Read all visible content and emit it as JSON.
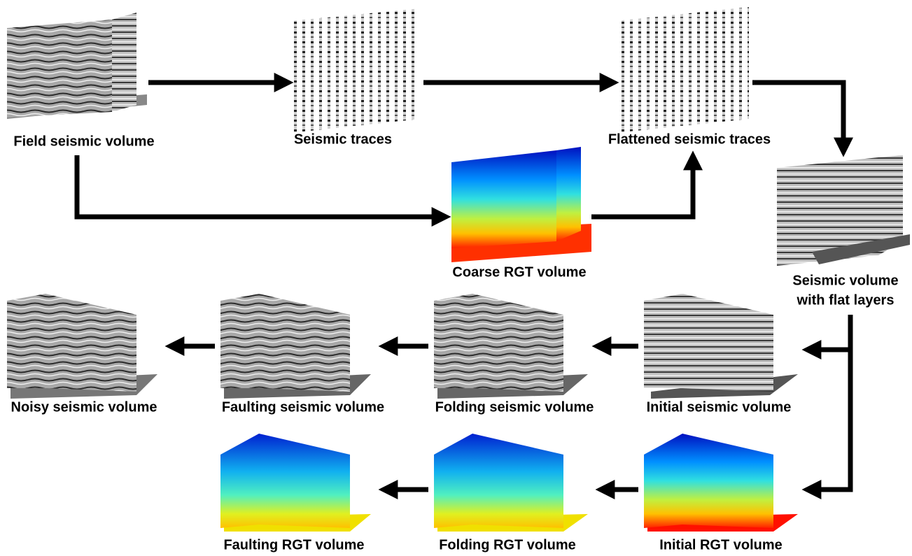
{
  "nodes": [
    {
      "label": "Field seismic volume"
    },
    {
      "label": "Seismic traces"
    },
    {
      "label": "Flattened seismic traces"
    },
    {
      "label": "Coarse RGT volume"
    },
    {
      "label": [
        "Seismic volume",
        "with flat layers"
      ]
    },
    {
      "label": "Initial seismic volume"
    },
    {
      "label": "Folding seismic volume"
    },
    {
      "label": "Faulting seismic volume"
    },
    {
      "label": "Noisy seismic volume"
    },
    {
      "label": "Initial RGT volume"
    },
    {
      "label": "Folding RGT volume"
    },
    {
      "label": "Faulting RGT volume"
    }
  ]
}
